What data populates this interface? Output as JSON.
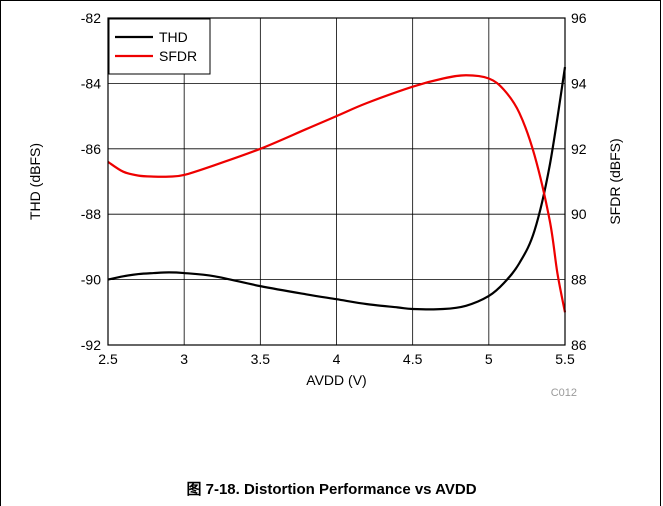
{
  "caption": "图 7-18. Distortion Performance vs AVDD",
  "chart_data": {
    "type": "line",
    "xlabel": "AVDD (V)",
    "ylabel_left": "THD (dBFS)",
    "ylabel_right": "SFDR (dBFS)",
    "xlim": [
      2.5,
      5.5
    ],
    "ylim_left": [
      -92,
      -82
    ],
    "ylim_right": [
      86,
      96
    ],
    "x_ticks": [
      "2.5",
      "3",
      "3.5",
      "4",
      "4.5",
      "5",
      "5.5"
    ],
    "y_ticks_left": [
      "-82",
      "-84",
      "-86",
      "-88",
      "-90",
      "-92"
    ],
    "y_ticks_right": [
      "96",
      "94",
      "92",
      "90",
      "88",
      "86"
    ],
    "grid": true,
    "legend_position": "top-left",
    "annotation": "C012",
    "series": [
      {
        "name": "THD",
        "axis": "left",
        "color": "#000000",
        "x": [
          2.5,
          2.6,
          2.7,
          2.8,
          2.9,
          3.0,
          3.2,
          3.5,
          3.8,
          4.0,
          4.2,
          4.4,
          4.5,
          4.7,
          4.85,
          5.0,
          5.1,
          5.2,
          5.3,
          5.4,
          5.5
        ],
        "y": [
          -90.0,
          -89.9,
          -89.83,
          -89.8,
          -89.78,
          -89.8,
          -89.9,
          -90.2,
          -90.45,
          -90.6,
          -90.75,
          -90.85,
          -90.9,
          -90.9,
          -90.8,
          -90.5,
          -90.1,
          -89.5,
          -88.5,
          -86.5,
          -83.5
        ]
      },
      {
        "name": "SFDR",
        "axis": "right",
        "color": "#ee0000",
        "x": [
          2.5,
          2.6,
          2.7,
          2.8,
          2.9,
          3.0,
          3.2,
          3.5,
          3.8,
          4.0,
          4.2,
          4.5,
          4.7,
          4.85,
          5.0,
          5.1,
          5.2,
          5.3,
          5.4,
          5.45,
          5.5
        ],
        "y": [
          91.6,
          91.3,
          91.18,
          91.15,
          91.15,
          91.2,
          91.5,
          92.0,
          92.6,
          93.0,
          93.4,
          93.9,
          94.15,
          94.25,
          94.15,
          93.8,
          93.1,
          91.8,
          89.8,
          88.2,
          87.0
        ]
      }
    ]
  }
}
